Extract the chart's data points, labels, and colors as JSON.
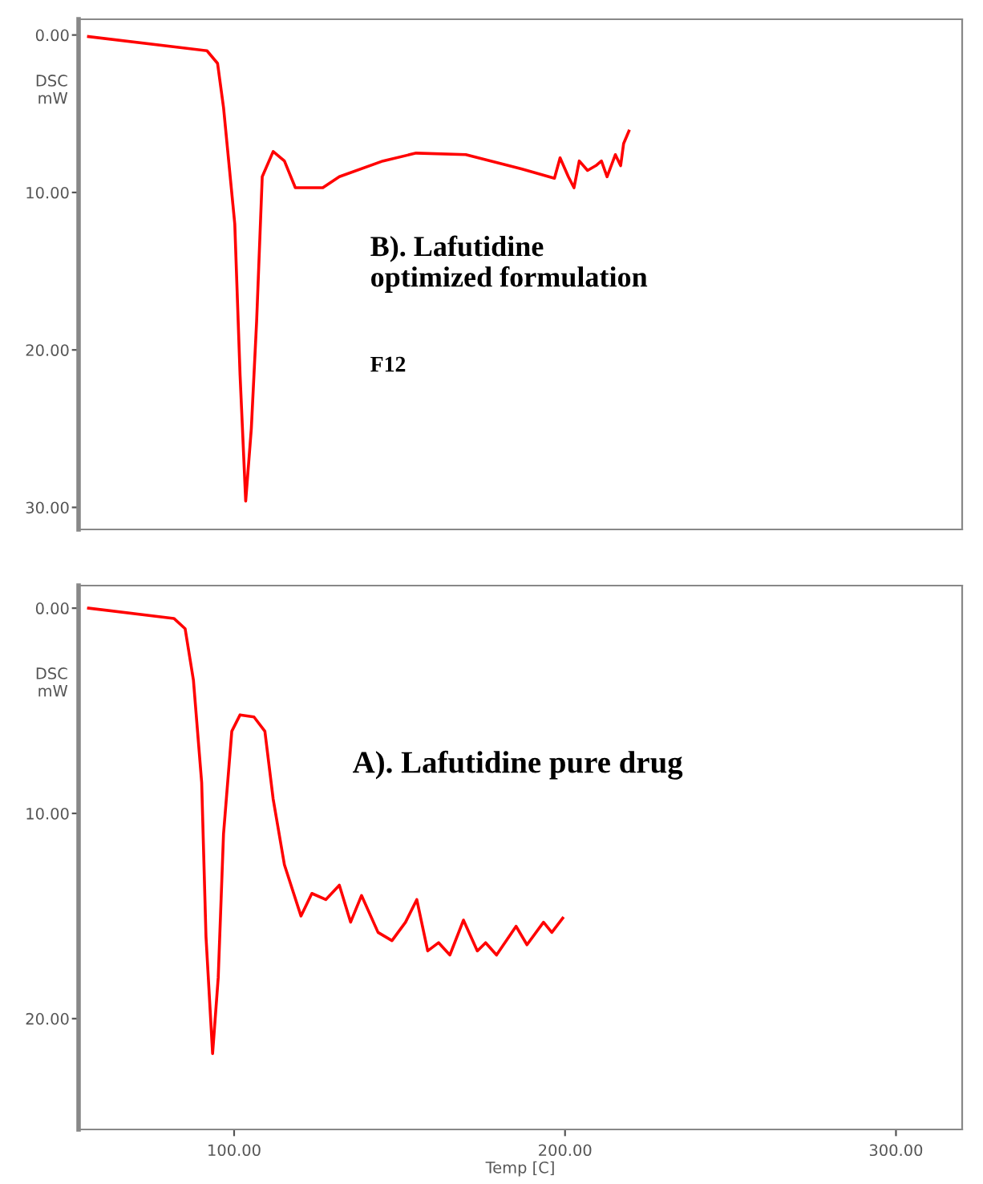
{
  "chart_data": [
    {
      "type": "line",
      "ylabel": "DSC\nmW",
      "xlim": [
        53,
        320
      ],
      "ylim": [
        31.4,
        -1
      ],
      "yticks": [
        {
          "value": 0,
          "label": "0.00"
        },
        {
          "value": 10,
          "label": "10.00"
        },
        {
          "value": 20,
          "label": "20.00"
        },
        {
          "value": 30,
          "label": "30.00"
        }
      ],
      "tick_labels": "y",
      "grid": false,
      "legend": false,
      "annotations": [
        "B). Lafutidine\noptimized formulation",
        "F12"
      ],
      "series": [
        {
          "color": "#ff0000",
          "x": [
            56,
            91.8,
            95,
            96.8,
            100.2,
            101.8,
            103.5,
            105.2,
            106.8,
            108.5,
            111.8,
            115.2,
            118.5,
            126.8,
            131.8,
            145,
            155,
            170,
            186.8,
            196.8,
            198.5,
            201,
            202.7,
            204.3,
            206.8,
            209.3,
            211,
            212.7,
            215.2,
            216.8,
            217.7,
            219.3
          ],
          "values": [
            0.1,
            1.0,
            1.8,
            4.6,
            12.0,
            21.6,
            29.6,
            25,
            18.2,
            9,
            7.4,
            8,
            9.7,
            9.7,
            9,
            8,
            7.5,
            7.6,
            8.5,
            9.1,
            7.8,
            9,
            9.7,
            8,
            8.6,
            8.3,
            8,
            9,
            7.6,
            8.3,
            6.9,
            6.1
          ]
        }
      ]
    },
    {
      "type": "line",
      "ylabel": "DSC\nmW",
      "xlabel": "Temp [C]",
      "xlim": [
        53,
        320
      ],
      "ylim": [
        25.4,
        -1.1
      ],
      "xticks": [
        {
          "value": 100,
          "label": "100.00"
        },
        {
          "value": 200,
          "label": "200.00"
        },
        {
          "value": 300,
          "label": "300.00"
        }
      ],
      "yticks": [
        {
          "value": 0,
          "label": "0.00"
        },
        {
          "value": 10,
          "label": "10.00"
        },
        {
          "value": 20,
          "label": "20.00"
        }
      ],
      "grid": false,
      "legend": false,
      "annotations": [
        "A). Lafutidine pure drug"
      ],
      "series": [
        {
          "color": "#ff0000",
          "x": [
            56,
            81.8,
            85.2,
            87.7,
            90.2,
            91.5,
            93.5,
            95.2,
            96.8,
            99.3,
            101.8,
            106,
            109.3,
            111.8,
            115.2,
            120.2,
            123.5,
            127.7,
            131.8,
            135.2,
            138.5,
            143.5,
            147.7,
            151.8,
            155.2,
            158.5,
            161.8,
            165.2,
            169.3,
            173.5,
            176,
            179.3,
            185.2,
            188.5,
            193.5,
            196,
            199.3
          ],
          "values": [
            0,
            0.5,
            1.0,
            3.5,
            8.5,
            16,
            21.7,
            18,
            11,
            6,
            5.2,
            5.3,
            6,
            9.3,
            12.5,
            15,
            13.9,
            14.2,
            13.5,
            15.3,
            14,
            15.8,
            16.2,
            15.3,
            14.2,
            16.7,
            16.3,
            16.9,
            15.2,
            16.7,
            16.3,
            16.9,
            15.5,
            16.4,
            15.3,
            15.8,
            15.1
          ]
        }
      ]
    }
  ]
}
